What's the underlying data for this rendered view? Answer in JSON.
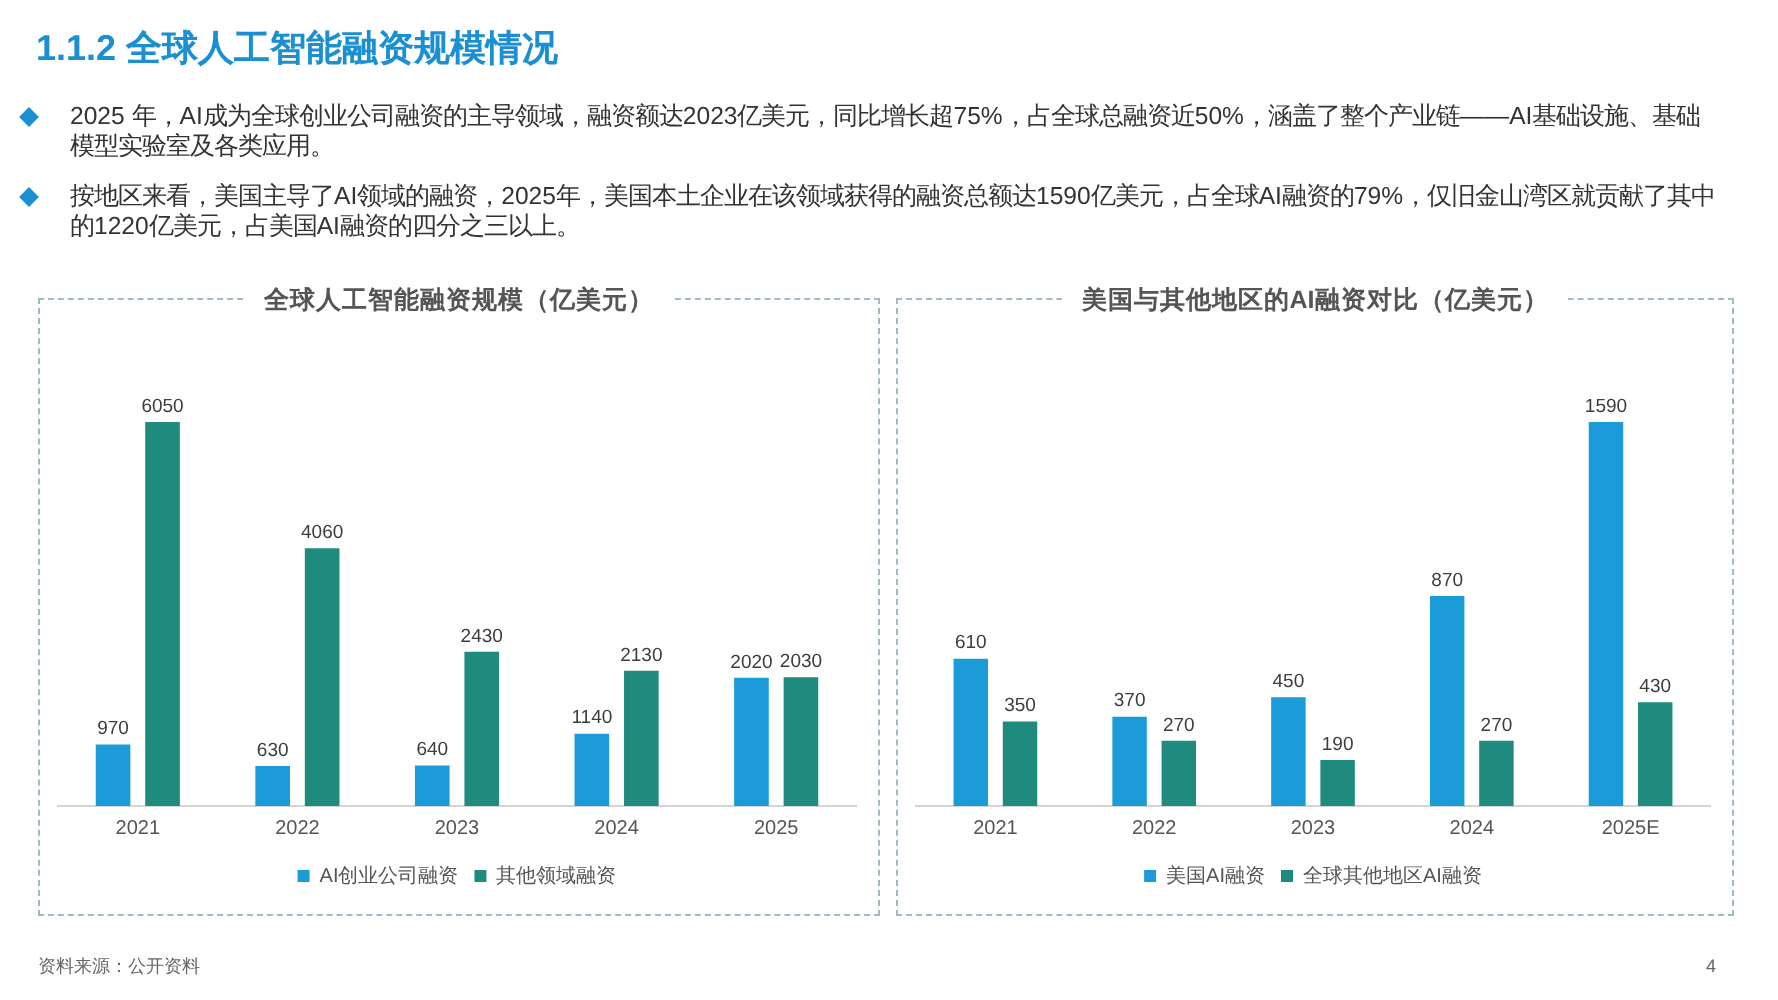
{
  "chart_data": [
    {
      "type": "other",
      "title": "1.1.2 全球人工智能融资规模情况",
      "annotations": [
        "2025 年，AI成为全球创业公司融资的主导领域，融资额达2023亿美元，同比增长超75%，占全球总融资近50%，涵盖了整个产业链——AI基础设施、基础模型实验室及各类应用。",
        "按地区来看，美国主导了AI领域的融资，2025年，美国本土企业在该领域获得的融资总额达1590亿美元，占全球AI融资的79%，仅旧金山湾区就贡献了其中的1220亿美元，占美国AI融资的四分之三以上。"
      ]
    },
    {
      "type": "bar",
      "title": "全球人工智能融资规模（亿美元）",
      "categories": [
        "2021",
        "2022",
        "2023",
        "2024",
        "2025"
      ],
      "series": [
        {
          "name": "AI创业公司融资",
          "color": "#1b9bd8",
          "values": [
            970,
            630,
            640,
            1140,
            2020
          ]
        },
        {
          "name": "其他领域融资",
          "color": "#1e8b7e",
          "values": [
            6050,
            4060,
            2430,
            2130,
            2030
          ]
        }
      ],
      "data_labels": true,
      "legend": "bottom",
      "grid": false,
      "tick_labels": "x"
    },
    {
      "type": "bar",
      "title": "美国与其他地区的AI融资对比（亿美元）",
      "categories": [
        "2021",
        "2022",
        "2023",
        "2024",
        "2025E"
      ],
      "series": [
        {
          "name": "美国AI融资",
          "color": "#1b9bd8",
          "values": [
            610,
            370,
            450,
            870,
            1590
          ]
        },
        {
          "name": "全球其他地区AI融资",
          "color": "#1e8b7e",
          "values": [
            350,
            270,
            190,
            270,
            430
          ]
        }
      ],
      "data_labels": true,
      "legend": "bottom",
      "grid": false,
      "tick_labels": "x"
    },
    {
      "type": "other",
      "annotations": [
        "资料来源：公开资料",
        "4"
      ]
    }
  ]
}
